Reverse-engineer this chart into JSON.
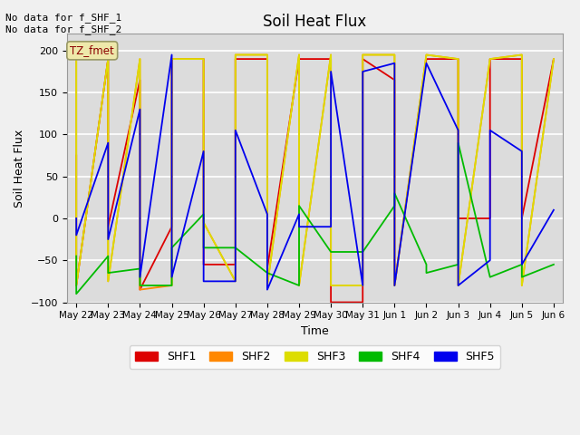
{
  "title": "Soil Heat Flux",
  "ylabel": "Soil Heat Flux",
  "xlabel": "Time",
  "ylim": [
    -100,
    220
  ],
  "colors": {
    "SHF1": "#DD0000",
    "SHF2": "#FF8800",
    "SHF3": "#DDDD00",
    "SHF4": "#00BB00",
    "SHF5": "#0000EE"
  },
  "legend_labels": [
    "SHF1",
    "SHF2",
    "SHF3",
    "SHF4",
    "SHF5"
  ],
  "annotation_text": "No data for f_SHF_1\nNo data for f_SHF_2",
  "box_label": "TZ_fmet",
  "background_color": "#DCDCDC",
  "fig_background": "#F0F0F0",
  "grid_color": "#FFFFFF",
  "title_fontsize": 12,
  "axis_fontsize": 9,
  "SHF1_x": [
    0,
    0,
    1,
    1,
    2,
    2,
    3,
    3,
    4,
    4,
    5,
    5,
    6,
    6,
    7,
    7,
    8,
    8,
    9,
    9,
    10,
    10,
    11,
    11,
    12,
    12,
    13,
    13,
    14,
    14,
    15
  ],
  "SHF1_y": [
    75,
    -80,
    190,
    -10,
    165,
    -85,
    -10,
    190,
    190,
    -55,
    -55,
    190,
    190,
    -60,
    190,
    190,
    190,
    -100,
    -100,
    190,
    165,
    -80,
    190,
    190,
    190,
    0,
    0,
    190,
    190,
    0,
    190
  ],
  "SHF2_x": [
    0,
    0,
    1,
    1,
    2,
    2,
    3,
    3,
    4,
    4,
    5,
    5,
    6,
    6,
    7,
    7,
    8,
    8,
    9,
    9,
    10,
    10,
    11,
    11,
    12,
    12,
    13,
    13,
    14,
    14,
    15
  ],
  "SHF2_y": [
    190,
    -80,
    190,
    -75,
    190,
    -85,
    -80,
    190,
    190,
    -5,
    -75,
    195,
    195,
    -80,
    195,
    -80,
    195,
    -80,
    -80,
    195,
    195,
    -80,
    195,
    195,
    190,
    -80,
    190,
    190,
    195,
    -80,
    190
  ],
  "SHF3_x": [
    0,
    0,
    1,
    1,
    2,
    2,
    3,
    3,
    4,
    4,
    5,
    5,
    6,
    6,
    7,
    7,
    8,
    8,
    9,
    9,
    10,
    10,
    11,
    11,
    12,
    12,
    13,
    13,
    14,
    14,
    15
  ],
  "SHF3_y": [
    190,
    -80,
    190,
    -75,
    190,
    -80,
    -80,
    190,
    190,
    -5,
    -75,
    195,
    195,
    -80,
    195,
    -80,
    195,
    -80,
    -80,
    195,
    195,
    -80,
    195,
    195,
    190,
    -80,
    190,
    190,
    195,
    -80,
    190
  ],
  "SHF4_x": [
    0,
    0,
    1,
    1,
    2,
    2,
    3,
    3,
    4,
    4,
    5,
    6,
    6,
    7,
    7,
    8,
    8,
    9,
    9,
    10,
    10,
    11,
    11,
    12,
    12,
    13,
    13,
    14,
    14,
    15
  ],
  "SHF4_y": [
    -45,
    -90,
    -45,
    -65,
    -60,
    -80,
    -80,
    -35,
    5,
    -35,
    -35,
    -65,
    -65,
    -80,
    15,
    -40,
    -40,
    -40,
    -40,
    15,
    30,
    -55,
    -65,
    -55,
    90,
    -70,
    -70,
    -55,
    -70,
    -55
  ],
  "SHF5_x": [
    0,
    0,
    1,
    1,
    2,
    2,
    3,
    3,
    4,
    4,
    5,
    5,
    6,
    6,
    7,
    7,
    8,
    8,
    9,
    9,
    10,
    10,
    11,
    11,
    12,
    12,
    13,
    13,
    14,
    14,
    15
  ],
  "SHF5_y": [
    0,
    -20,
    90,
    -25,
    130,
    -70,
    195,
    -70,
    80,
    -75,
    -75,
    105,
    5,
    -85,
    5,
    -10,
    -10,
    175,
    -80,
    175,
    185,
    -80,
    185,
    185,
    105,
    -80,
    -50,
    105,
    80,
    -55,
    10
  ],
  "tick_days": [
    0,
    1,
    2,
    3,
    4,
    5,
    6,
    7,
    8,
    9,
    10,
    11,
    12,
    13,
    14,
    15
  ],
  "tick_labels": [
    "May 22",
    "May 23",
    "May 24",
    "May 25",
    "May 26",
    "May 27",
    "May 28",
    "May 29",
    "May 30",
    "May 31",
    "Jun 1",
    "Jun 2",
    "Jun 3",
    "Jun 4",
    "Jun 5",
    "Jun 6"
  ]
}
